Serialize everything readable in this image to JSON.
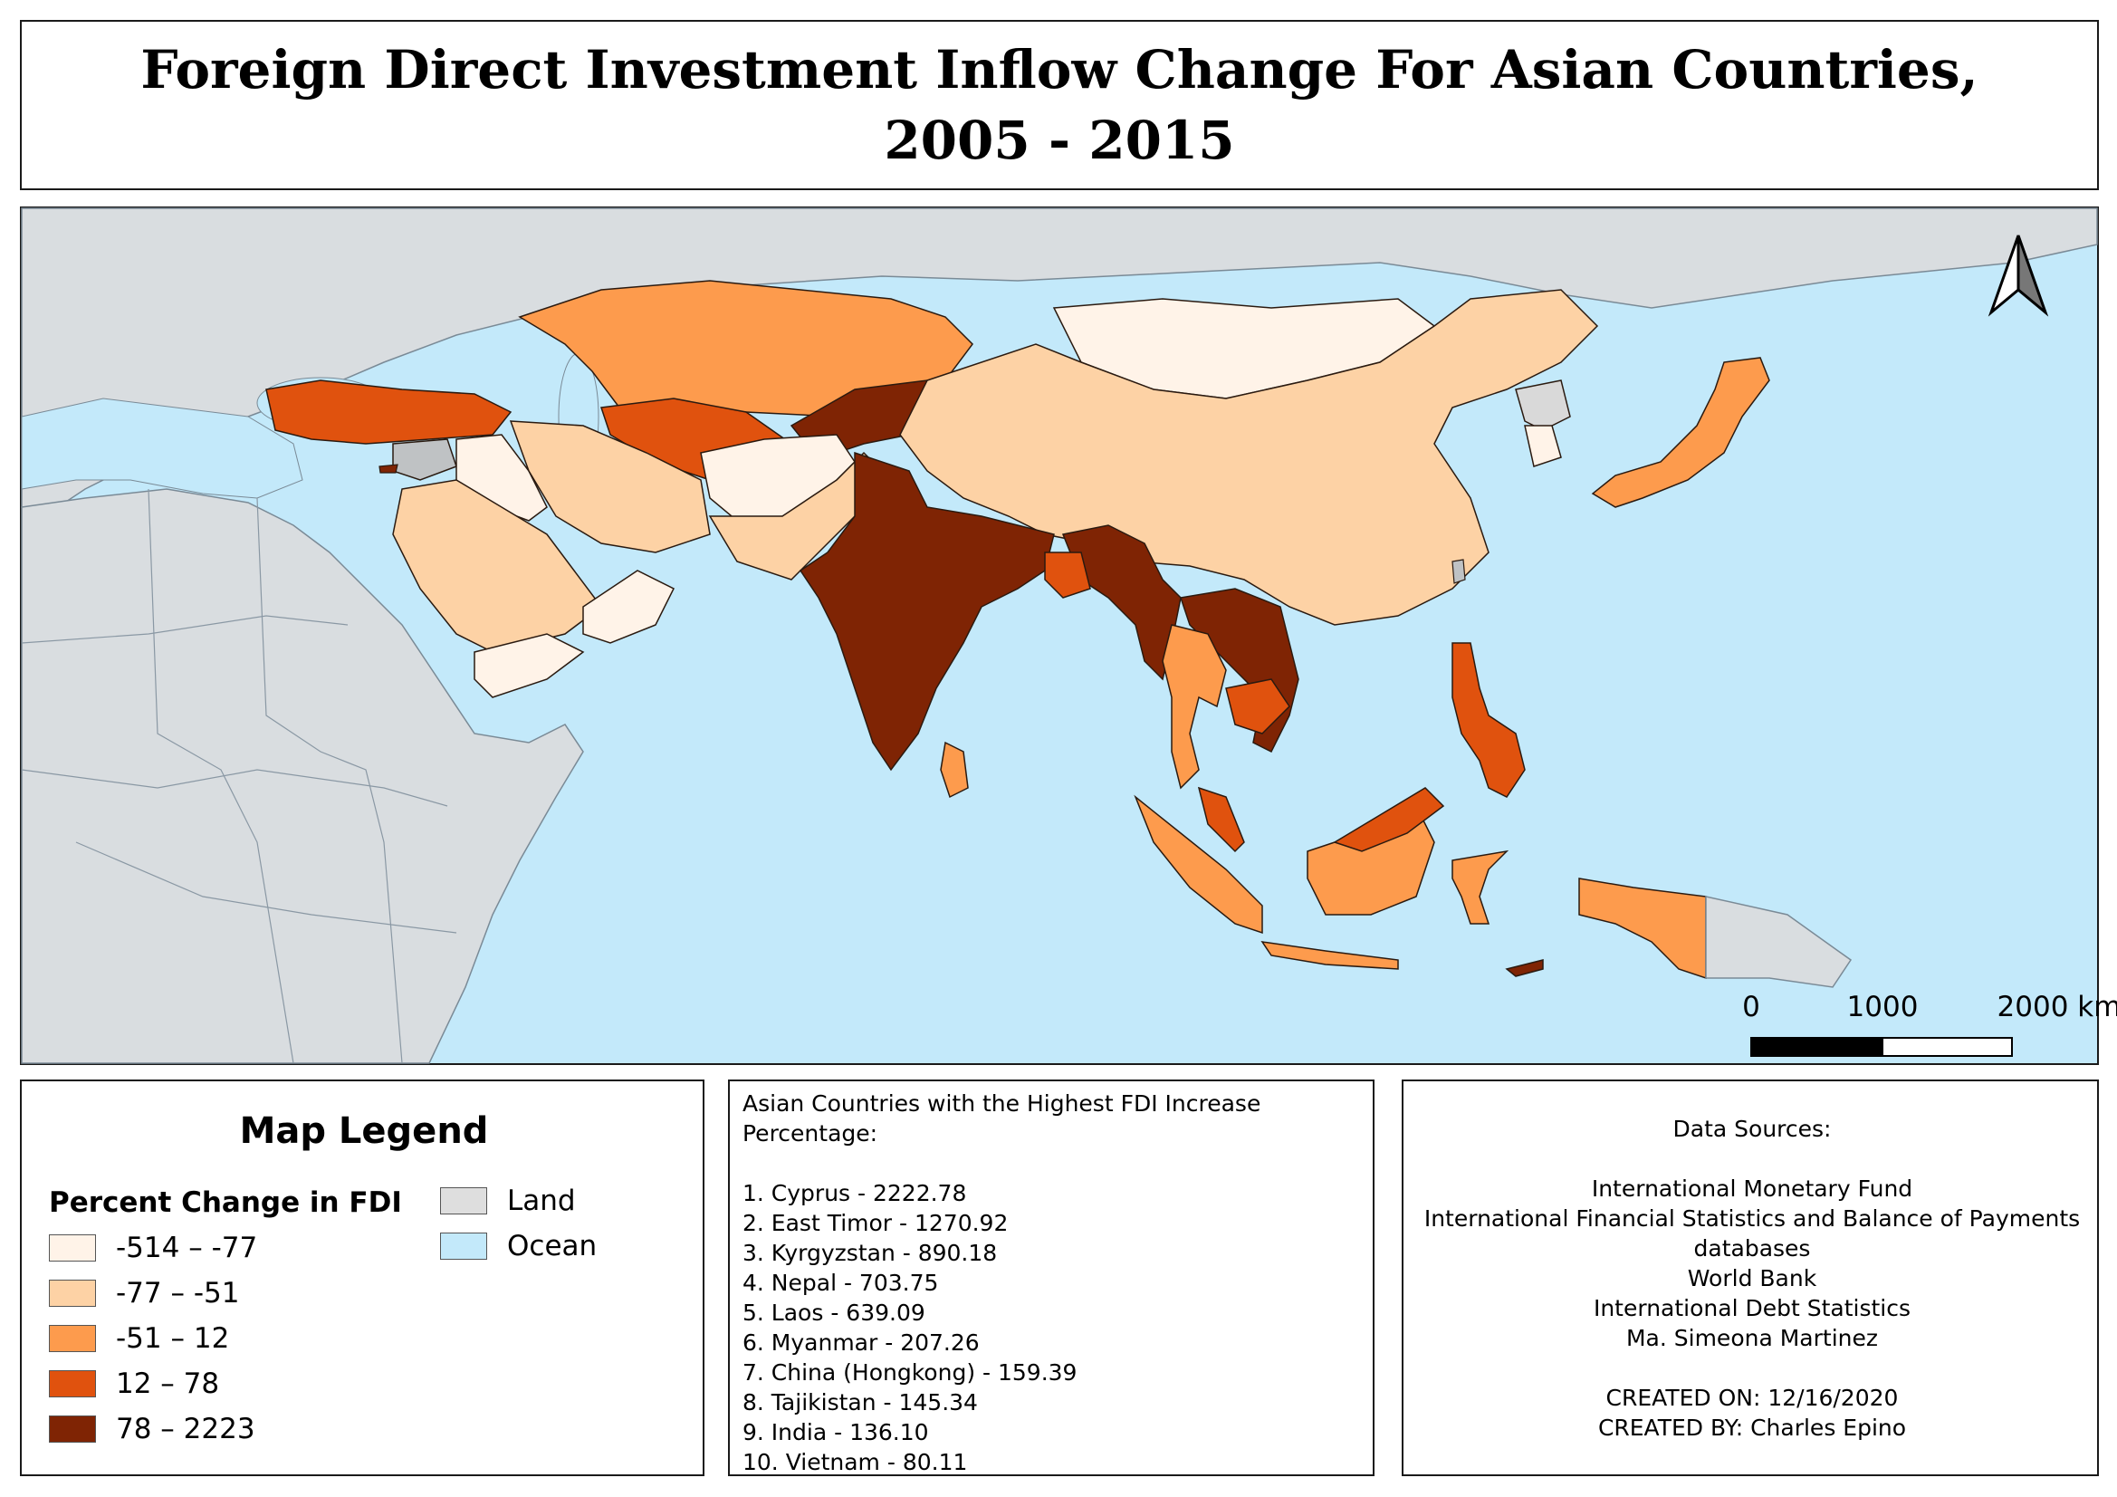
{
  "title": "Foreign Direct Investment Inflow Change For Asian Countries,\n2005 - 2015",
  "colors": {
    "ocean": "#c3e9fa",
    "land": "#d9d9d9",
    "class_1": "#fff3e8",
    "class_2": "#fdd2a5",
    "class_3": "#fd9b4d",
    "class_4": "#e0520e",
    "class_5": "#7f2404"
  },
  "legend": {
    "title": "Map Legend",
    "subtitle": "Percent Change in FDI",
    "classes": [
      {
        "label": "-514 – -77",
        "color": "#fff3e8"
      },
      {
        "label": "-77 – -51",
        "color": "#fdd2a5"
      },
      {
        "label": "-51 – 12",
        "color": "#fd9b4d"
      },
      {
        "label": "12 – 78",
        "color": "#e0520e"
      },
      {
        "label": "78 – 2223",
        "color": "#7f2404"
      }
    ],
    "other": [
      {
        "label": "Land",
        "color": "#dedede"
      },
      {
        "label": "Ocean",
        "color": "#c3e9fa"
      }
    ]
  },
  "scale_bar": {
    "labels": [
      "0",
      "1000",
      "2000 km"
    ]
  },
  "north_arrow_icon": "north-arrow-icon",
  "top10": {
    "heading": [
      "Asian Countries with the Highest FDI Increase",
      "Percentage:"
    ],
    "items": [
      "1. Cyprus - 2222.78",
      "2. East Timor - 1270.92",
      "3. Kyrgyzstan - 890.18",
      "4. Nepal - 703.75",
      "5. Laos - 639.09",
      "6. Myanmar - 207.26",
      "7. China (Hongkong) - 159.39",
      "8. Tajikistan - 145.34",
      "9. India - 136.10",
      "10. Vietnam - 80.11"
    ]
  },
  "sources": {
    "lines": [
      "Data Sources:",
      "",
      "International Monetary Fund",
      "International Financial Statistics and Balance of Payments",
      "databases",
      "World Bank",
      "International Debt Statistics",
      "Ma. Simeona Martinez",
      "",
      "CREATED ON: 12/16/2020",
      "CREATED BY: Charles Epino"
    ]
  }
}
